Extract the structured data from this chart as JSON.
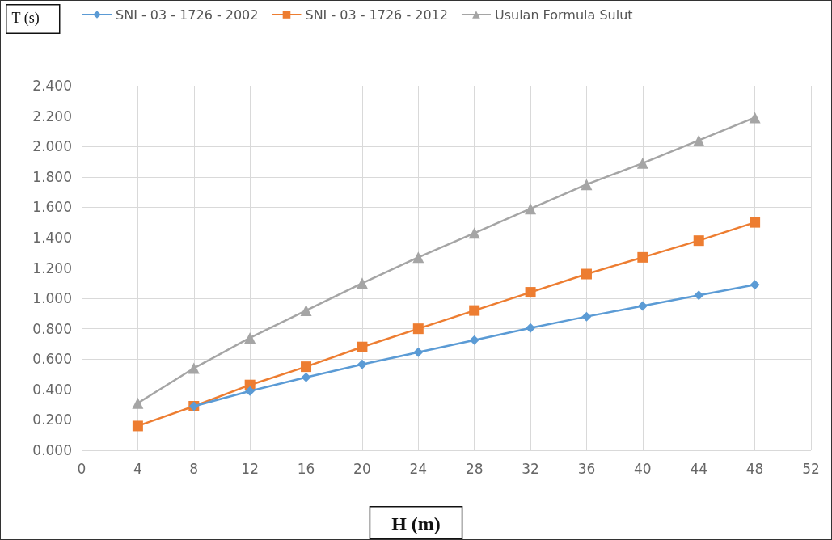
{
  "chart_data": {
    "type": "line",
    "xlabel": "H (m)",
    "ylabel": "T (s)",
    "x": [
      4,
      8,
      12,
      16,
      20,
      24,
      28,
      32,
      36,
      40,
      44,
      48
    ],
    "series": [
      {
        "name": "SNI - 03 - 1726 - 2002",
        "color": "#5b9bd5",
        "marker": "diamond",
        "values": [
          null,
          0.29,
          0.39,
          0.48,
          0.565,
          0.645,
          0.725,
          0.805,
          0.88,
          0.95,
          1.02,
          1.09
        ]
      },
      {
        "name": "SNI - 03 - 1726 - 2012",
        "color": "#ed7d31",
        "marker": "square",
        "values": [
          0.16,
          0.29,
          0.43,
          0.55,
          0.68,
          0.8,
          0.92,
          1.04,
          1.16,
          1.27,
          1.38,
          1.5
        ]
      },
      {
        "name": "Usulan Formula Sulut",
        "color": "#a5a5a5",
        "marker": "triangle",
        "values": [
          0.31,
          0.54,
          0.74,
          0.92,
          1.1,
          1.27,
          1.43,
          1.59,
          1.75,
          1.89,
          2.04,
          2.19
        ]
      }
    ],
    "xlim": [
      0,
      52
    ],
    "xticks": [
      0,
      4,
      8,
      12,
      16,
      20,
      24,
      28,
      32,
      36,
      40,
      44,
      48,
      52
    ],
    "ylim": [
      0,
      2.4
    ],
    "yticks": [
      {
        "value": 0,
        "label": "0.000"
      },
      {
        "value": 0.2,
        "label": "0.200"
      },
      {
        "value": 0.4,
        "label": "0.400"
      },
      {
        "value": 0.6,
        "label": "0.600"
      },
      {
        "value": 0.8,
        "label": "0.800"
      },
      {
        "value": 1,
        "label": "1.000"
      },
      {
        "value": 1.2,
        "label": "1.200"
      },
      {
        "value": 1.4,
        "label": "1.400"
      },
      {
        "value": 1.6,
        "label": "1.600"
      },
      {
        "value": 1.8,
        "label": "1.800"
      },
      {
        "value": 2,
        "label": "2.000"
      },
      {
        "value": 2.2,
        "label": "2.200"
      },
      {
        "value": 2.4,
        "label": "2.400"
      }
    ],
    "grid": true,
    "legend": "top"
  }
}
